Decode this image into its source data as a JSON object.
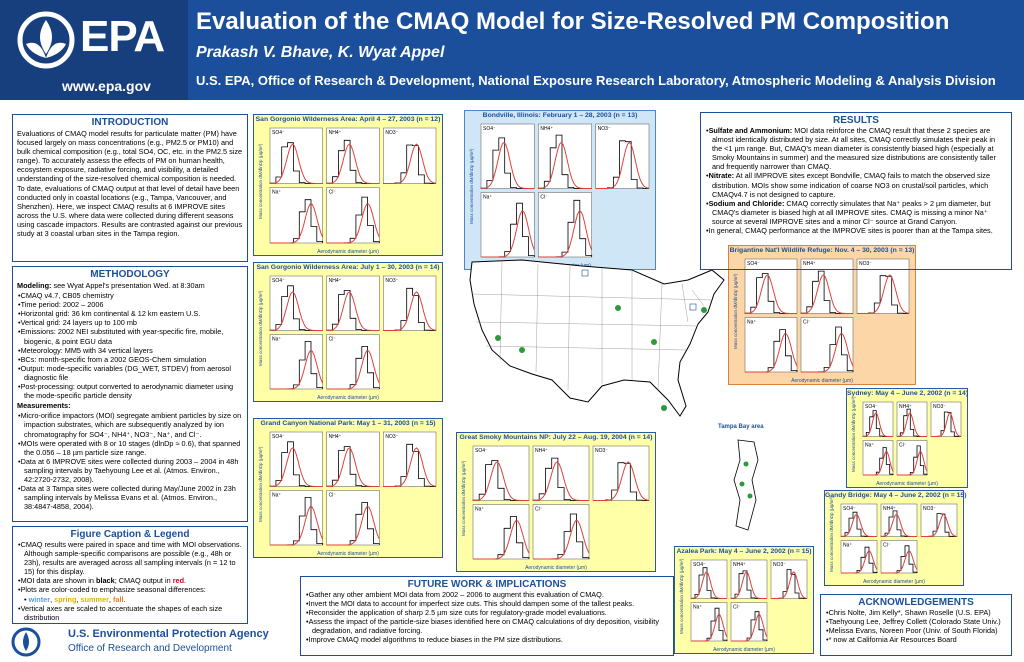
{
  "header": {
    "agency_short": "EPA",
    "url": "www.epa.gov",
    "title": "Evaluation of the CMAQ Model for Size-Resolved PM Composition",
    "authors": "Prakash V. Bhave, K. Wyat Appel",
    "affiliation": "U.S. EPA, Office of Research & Development, National Exposure Research Laboratory, Atmospheric Modeling & Analysis Division"
  },
  "intro": {
    "title": "INTRODUCTION",
    "body": "Evaluations of CMAQ model results for particulate matter (PM) have focused largely on mass concentrations (e.g., PM2.5 or PM10) and bulk chemical composition (e.g., total SO4, OC, etc. in the PM2.5 size range). To accurately assess the effects of PM on human health, ecosystem exposure, radiative forcing, and visibility, a detailed understanding of the size-resolved chemical composition is needed. To date, evaluations of CMAQ output at that level of detail have been conducted only in coastal locations (e.g., Tampa, Vancouver, and Shenzhen). Here, we inspect CMAQ results at 6 IMPROVE sites across the U.S. where data were collected during different seasons using cascade impactors. Results are contrasted against our previous study at 3 coastal urban sites in the Tampa region."
  },
  "methodology": {
    "title": "METHODOLOGY",
    "modeling_label": "Modeling:",
    "modeling_text": " see Wyat Appel's presentation Wed. at 8:30am",
    "modeling_items": [
      "CMAQ v4.7, CB05 chemistry",
      "Time period: 2002 – 2006",
      "Horizontal grid: 36 km continental & 12 km eastern U.S.",
      "Vertical grid: 24 layers up to 100 mb",
      "Emissions: 2002 NEI substituted with year-specific fire, mobile, biogenic, & point EGU data",
      "Meteorology: MM5 with 34 vertical layers",
      "BCs: month-specific from a 2002 GEOS-Chem simulation",
      "Output: mode-specific variables (DG_WET, STDEV) from aerosol diagnostic file",
      "Post-processing: output converted to aerodynamic diameter using the mode-specific particle density"
    ],
    "measurements_label": "Measurements:",
    "measurement_items": [
      "Micro-orifice impactors (MOI) segregate ambient particles by size on impaction substrates, which are subsequently analyzed by ion chromatography for SO4⁻, NH4⁺, NO3⁻, Na⁺, and Cl⁻.",
      "MOIs were operated with 8 or 10 stages (dlnDp ≈ 0.6), that spanned the 0.056 – 18 µm particle size range.",
      "Data at 6 IMPROVE sites were collected during 2003 – 2004 in 48h sampling intervals by Taehyoung Lee et al. (Atmos. Environ., 42:2720-2732, 2008).",
      "Data at 3 Tampa sites were collected during May/June 2002 in 23h sampling intervals by Melissa Evans et al. (Atmos. Environ., 38:4847-4858, 2004)."
    ]
  },
  "caption": {
    "title": "Figure Caption & Legend",
    "items": [
      "CMAQ results were paired in space and time with MOI observations.  Although sample-specific comparisons are possible (e.g., 48h or 23h), results are averaged across all sampling intervals (n = 12 to 15) for this display.",
      "MOI data are shown in black; CMAQ output in red.",
      "Plots are color-coded to emphasize seasonal differences:",
      "Vertical axes are scaled to accentuate the shapes of each size distribution"
    ],
    "black_word": "black",
    "red_word": "red",
    "seasons": {
      "winter": "winter",
      "spring": "spring",
      "summer": "summer",
      "fall": "fall",
      "colors": {
        "winter": "#5b9bd5",
        "spring": "#f0c02e",
        "summer": "#f5d000",
        "fall": "#f07f1f"
      }
    }
  },
  "footer": {
    "agency": "U.S. Environmental Protection Agency",
    "office": "Office of Research and Development"
  },
  "panels": [
    {
      "id": "sg-apr",
      "title": "San Gorgonio Wilderness Area: April 4 – 27, 2003 (n = 12)",
      "season": "spring"
    },
    {
      "id": "bondville",
      "title": "Bondville, Illinois: February 1 – 28, 2003 (n = 13)",
      "season": "winter"
    },
    {
      "id": "sg-jul",
      "title": "San Gorgonio Wilderness Area: July 1 – 30, 2003 (n = 14)",
      "season": "summer"
    },
    {
      "id": "brigantine",
      "title": "Brigantine Nat'l Wildlife Refuge: Nov. 4 – 30, 2003 (n = 13)",
      "season": "fall"
    },
    {
      "id": "sydney",
      "title": "Sydney: May 4 – June 2, 2002 (n = 14)",
      "season": "spring"
    },
    {
      "id": "grandcanyon",
      "title": "Grand Canyon National Park: May 1 – 31, 2003 (n = 15)",
      "season": "spring"
    },
    {
      "id": "smoky",
      "title": "Great Smoky Mountains NP: July 22 – Aug. 19, 2004 (n = 14)",
      "season": "summer"
    },
    {
      "id": "gandy",
      "title": "Gandy Bridge: May 4 – June 2, 2002 (n = 15)",
      "season": "spring"
    },
    {
      "id": "azalea",
      "title": "Azalea Park: May 4 – June 2, 2002 (n = 15)",
      "season": "spring"
    }
  ],
  "axes": {
    "ylabel": "Mass concentration dM/dlnDp (µg/m³)",
    "xlabel": "Aerodynamic diameter (µm)",
    "species": [
      "SO4⁻",
      "NH4⁺",
      "NO3⁻",
      "Na⁺",
      "Cl⁻"
    ]
  },
  "map": {
    "inset_label": "Tampa Bay area"
  },
  "results": {
    "title": "RESULTS",
    "items": [
      {
        "label": "Sulfate and Ammonium:",
        "text": " MOI data reinforce the CMAQ result that these 2 species are almost identically distributed by size. At all sites, CMAQ correctly simulates their peak in the <1 µm range.  But, CMAQ's mean diameter is consistently biased high (especially at Smoky Mountains in summer) and the measured size distributions are consistently taller and frequently narrower than CMAQ."
      },
      {
        "label": "Nitrate:",
        "text": " At all IMPROVE sites except Bondville, CMAQ fails to match the observed size distribution. MOIs show some indication of coarse NO3 on crustal/soil particles, which CMAQv4.7 is not designed to capture."
      },
      {
        "label": "Sodium and Chloride:",
        "text": " CMAQ correctly simulates that Na⁺ peaks > 2 µm diameter, but CMAQ's diameter is biased high at all IMPROVE sites. CMAQ is missing a minor Na⁺ source at several IMPROVE sites and a minor Cl⁻ source at Grand Canyon."
      },
      {
        "label": "",
        "text": "In general, CMAQ performance at the IMPROVE sites is poorer than at the Tampa sites."
      }
    ]
  },
  "future": {
    "title": "FUTURE WORK & IMPLICATIONS",
    "items": [
      "Gather any other ambient MOI data from 2002 – 2006 to augment this evaluation of CMAQ.",
      "Invert the MOI data to account for imperfect size cuts.  This should dampen some of the tallest peaks.",
      "Reconsider the application of sharp 2.5 µm size cuts for regulatory-grade model evaluations.",
      "Assess the impact of the particle-size biases identified here on CMAQ calculations of dry deposition, visibility degradation, and radiative forcing.",
      "Improve CMAQ model algorithms to reduce biases in the PM size distributions."
    ]
  },
  "ack": {
    "title": "ACKNOWLEDGEMENTS",
    "items": [
      "Chris Nolte, Jim Kelly*, Shawn Roselle (U.S. EPA)",
      "Taehyoung Lee, Jeffrey Collett (Colorado State Univ.)",
      "Melissa Evans, Noreen Poor (Univ. of South Florida)",
      "* now at California Air Resources Board"
    ]
  }
}
